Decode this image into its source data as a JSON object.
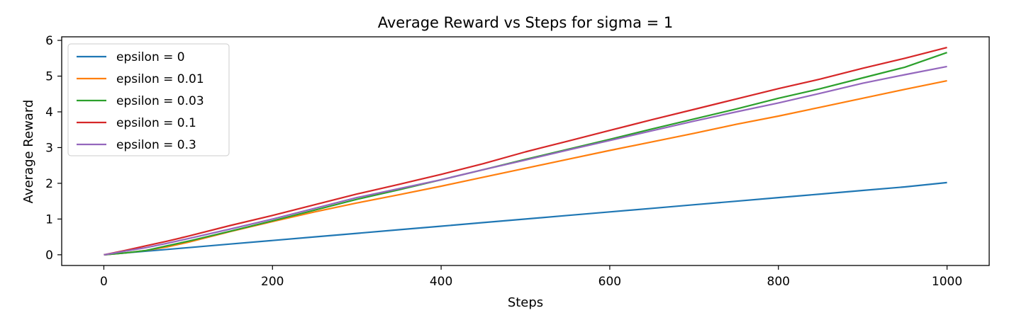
{
  "chart_data": {
    "type": "line",
    "title": "Average Reward vs Steps for sigma = 1",
    "xlabel": "Steps",
    "ylabel": "Average Reward",
    "xlim": [
      -50,
      1050
    ],
    "ylim": [
      -0.3,
      6.1
    ],
    "xticks": [
      0,
      200,
      400,
      600,
      800,
      1000
    ],
    "yticks": [
      0,
      1,
      2,
      3,
      4,
      5,
      6
    ],
    "grid": false,
    "legend_position": "top-left",
    "x": [
      0,
      25,
      50,
      75,
      100,
      150,
      200,
      250,
      300,
      350,
      400,
      450,
      500,
      550,
      600,
      650,
      700,
      750,
      800,
      850,
      900,
      950,
      1000
    ],
    "series": [
      {
        "name": "epsilon = 0",
        "color": "#1f77b4",
        "values": [
          0.0,
          0.05,
          0.1,
          0.15,
          0.2,
          0.3,
          0.4,
          0.5,
          0.6,
          0.7,
          0.8,
          0.9,
          1.0,
          1.1,
          1.2,
          1.3,
          1.4,
          1.5,
          1.6,
          1.7,
          1.8,
          1.9,
          2.02
        ]
      },
      {
        "name": "epsilon = 0.01",
        "color": "#ff7f0e",
        "values": [
          0.0,
          0.05,
          0.12,
          0.22,
          0.35,
          0.65,
          0.93,
          1.2,
          1.45,
          1.68,
          1.92,
          2.17,
          2.42,
          2.67,
          2.92,
          3.16,
          3.4,
          3.65,
          3.88,
          4.13,
          4.38,
          4.63,
          4.87
        ]
      },
      {
        "name": "epsilon = 0.03",
        "color": "#2ca02c",
        "values": [
          0.0,
          0.05,
          0.12,
          0.25,
          0.38,
          0.66,
          0.95,
          1.25,
          1.55,
          1.82,
          2.1,
          2.38,
          2.67,
          2.95,
          3.23,
          3.52,
          3.8,
          4.08,
          4.38,
          4.65,
          4.95,
          5.25,
          5.66
        ]
      },
      {
        "name": "epsilon = 0.1",
        "color": "#d62728",
        "values": [
          0.0,
          0.12,
          0.25,
          0.38,
          0.52,
          0.82,
          1.1,
          1.4,
          1.7,
          1.97,
          2.25,
          2.55,
          2.88,
          3.18,
          3.48,
          3.78,
          4.07,
          4.36,
          4.65,
          4.92,
          5.22,
          5.5,
          5.8
        ]
      },
      {
        "name": "epsilon = 0.3",
        "color": "#9467bd",
        "values": [
          0.0,
          0.1,
          0.2,
          0.32,
          0.45,
          0.72,
          1.0,
          1.3,
          1.6,
          1.85,
          2.1,
          2.38,
          2.65,
          2.93,
          3.2,
          3.47,
          3.74,
          4.0,
          4.25,
          4.52,
          4.8,
          5.04,
          5.27
        ]
      }
    ]
  }
}
